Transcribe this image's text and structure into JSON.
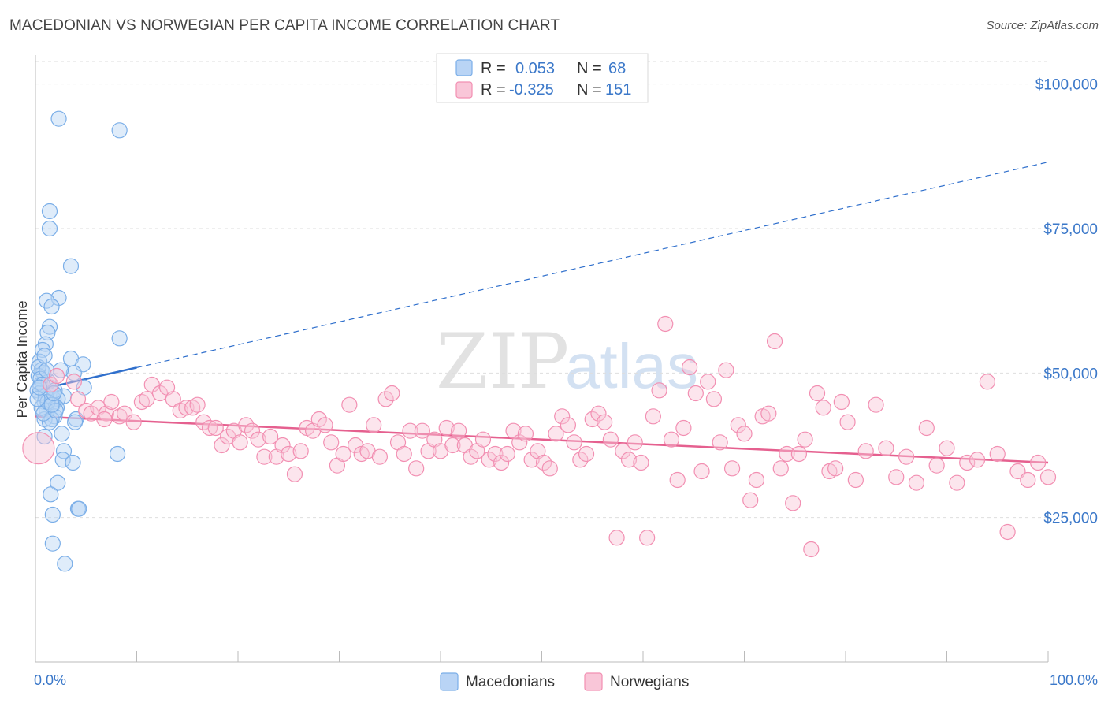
{
  "header": {
    "title": "MACEDONIAN VS NORWEGIAN PER CAPITA INCOME CORRELATION CHART",
    "source": "Source: ZipAtlas.com"
  },
  "watermark": {
    "zip": "ZIP",
    "atlas": "atlas"
  },
  "legend_top": {
    "rows": [
      {
        "r_label": "R =",
        "r_value": "0.053",
        "n_label": "N =",
        "n_value": "68",
        "color": "#7aaee8"
      },
      {
        "r_label": "R =",
        "r_value": "-0.325",
        "n_label": "N =",
        "n_value": "151",
        "color": "#f28fb2"
      }
    ]
  },
  "legend_bottom": {
    "items": [
      {
        "label": "Macedonians",
        "color": "#7aaee8"
      },
      {
        "label": "Norwegians",
        "color": "#f28fb2"
      }
    ]
  },
  "chart_data": {
    "type": "scatter",
    "title": "MACEDONIAN VS NORWEGIAN PER CAPITA INCOME CORRELATION CHART",
    "xlabel": "",
    "ylabel": "Per Capita Income",
    "xlim": [
      0,
      100
    ],
    "ylim": [
      0,
      105000
    ],
    "x_tick_labels": [
      "0.0%",
      "100.0%"
    ],
    "y_ticks": [
      {
        "value": 25000,
        "label": "$25,000"
      },
      {
        "value": 50000,
        "label": "$50,000"
      },
      {
        "value": 75000,
        "label": "$75,000"
      },
      {
        "value": 100000,
        "label": "$100,000"
      }
    ],
    "grid": true,
    "legend_position": "top-center",
    "series": [
      {
        "name": "Macedonians",
        "color": "#7aaee8",
        "line_color": "#2f6fcc",
        "trend": {
          "x0": 0,
          "y0": 47000,
          "x1": 100,
          "y1": 86500,
          "solid_until": 10
        },
        "points": [
          [
            2.3,
            94000
          ],
          [
            8.3,
            92000
          ],
          [
            1.4,
            78000
          ],
          [
            1.4,
            75000
          ],
          [
            3.5,
            68500
          ],
          [
            2.3,
            63000
          ],
          [
            1.1,
            62500
          ],
          [
            1.6,
            61500
          ],
          [
            1.4,
            58000
          ],
          [
            1.2,
            57000
          ],
          [
            8.3,
            56000
          ],
          [
            1.0,
            55000
          ],
          [
            0.7,
            54000
          ],
          [
            3.5,
            52500
          ],
          [
            0.4,
            52000
          ],
          [
            4.7,
            51500
          ],
          [
            0.6,
            50500
          ],
          [
            0.8,
            50000
          ],
          [
            3.8,
            50000
          ],
          [
            0.3,
            49500
          ],
          [
            0.5,
            48000
          ],
          [
            1.5,
            47500
          ],
          [
            4.8,
            47500
          ],
          [
            0.2,
            47000
          ],
          [
            2.8,
            46000
          ],
          [
            1.8,
            45500
          ],
          [
            2.2,
            45500
          ],
          [
            0.9,
            45000
          ],
          [
            1.7,
            44500
          ],
          [
            2.1,
            44000
          ],
          [
            1.1,
            43500
          ],
          [
            1.9,
            42500
          ],
          [
            0.9,
            42000
          ],
          [
            1.6,
            42000
          ],
          [
            4.0,
            42000
          ],
          [
            1.4,
            41500
          ],
          [
            3.9,
            41500
          ],
          [
            2.6,
            39500
          ],
          [
            0.9,
            39000
          ],
          [
            2.8,
            36500
          ],
          [
            8.1,
            36000
          ],
          [
            2.7,
            35000
          ],
          [
            3.7,
            34500
          ],
          [
            2.2,
            31000
          ],
          [
            1.5,
            29000
          ],
          [
            4.2,
            26500
          ],
          [
            4.3,
            26500
          ],
          [
            1.7,
            25500
          ],
          [
            1.7,
            20500
          ],
          [
            2.9,
            17000
          ],
          [
            0.4,
            46500
          ],
          [
            1.3,
            48500
          ],
          [
            0.6,
            44000
          ],
          [
            2.5,
            50500
          ],
          [
            1.0,
            46000
          ],
          [
            0.3,
            51000
          ],
          [
            0.8,
            43000
          ],
          [
            1.9,
            47000
          ],
          [
            0.5,
            49000
          ],
          [
            1.2,
            45000
          ],
          [
            2.0,
            43500
          ],
          [
            0.7,
            48000
          ],
          [
            1.6,
            44500
          ],
          [
            0.2,
            45500
          ],
          [
            1.1,
            50500
          ],
          [
            0.4,
            47500
          ],
          [
            1.8,
            46500
          ],
          [
            0.9,
            53000
          ]
        ]
      },
      {
        "name": "Norwegians",
        "color": "#f28fb2",
        "line_color": "#e5608f",
        "trend": {
          "x0": 0,
          "y0": 42500,
          "x1": 100,
          "y1": 34500
        },
        "points": [
          [
            0.3,
            37000
          ],
          [
            1.5,
            48000
          ],
          [
            2.1,
            49500
          ],
          [
            3.8,
            48500
          ],
          [
            4.2,
            45500
          ],
          [
            5.0,
            43500
          ],
          [
            5.5,
            43000
          ],
          [
            6.2,
            44000
          ],
          [
            7.0,
            43000
          ],
          [
            7.5,
            45000
          ],
          [
            8.3,
            42500
          ],
          [
            8.8,
            43000
          ],
          [
            9.7,
            41500
          ],
          [
            10.5,
            45000
          ],
          [
            11.0,
            45500
          ],
          [
            11.5,
            48000
          ],
          [
            12.3,
            46500
          ],
          [
            13.0,
            47500
          ],
          [
            13.6,
            45500
          ],
          [
            14.3,
            43500
          ],
          [
            14.9,
            44000
          ],
          [
            15.5,
            44000
          ],
          [
            16.0,
            44500
          ],
          [
            16.6,
            41500
          ],
          [
            17.2,
            40500
          ],
          [
            17.8,
            40500
          ],
          [
            18.4,
            37500
          ],
          [
            19.0,
            39000
          ],
          [
            19.6,
            40000
          ],
          [
            20.2,
            38000
          ],
          [
            20.8,
            41000
          ],
          [
            21.4,
            40000
          ],
          [
            22.0,
            38500
          ],
          [
            22.6,
            35500
          ],
          [
            23.2,
            39000
          ],
          [
            23.8,
            35500
          ],
          [
            24.4,
            37500
          ],
          [
            25.0,
            36000
          ],
          [
            25.6,
            32500
          ],
          [
            26.2,
            36500
          ],
          [
            26.8,
            40500
          ],
          [
            27.4,
            40000
          ],
          [
            28.0,
            42000
          ],
          [
            28.6,
            41000
          ],
          [
            29.2,
            38000
          ],
          [
            29.8,
            34000
          ],
          [
            30.4,
            36000
          ],
          [
            31.0,
            44500
          ],
          [
            31.6,
            37500
          ],
          [
            32.2,
            36000
          ],
          [
            32.8,
            36500
          ],
          [
            33.4,
            41000
          ],
          [
            34.0,
            35500
          ],
          [
            34.6,
            45500
          ],
          [
            35.2,
            46500
          ],
          [
            35.8,
            38000
          ],
          [
            36.4,
            36000
          ],
          [
            37.0,
            40000
          ],
          [
            37.6,
            33500
          ],
          [
            38.2,
            40000
          ],
          [
            38.8,
            36500
          ],
          [
            39.4,
            38500
          ],
          [
            40.0,
            36500
          ],
          [
            40.6,
            40500
          ],
          [
            41.2,
            37500
          ],
          [
            41.8,
            40000
          ],
          [
            42.4,
            37500
          ],
          [
            43.0,
            35500
          ],
          [
            43.6,
            36500
          ],
          [
            44.2,
            38500
          ],
          [
            44.8,
            35000
          ],
          [
            45.4,
            36000
          ],
          [
            46.0,
            34500
          ],
          [
            46.6,
            36000
          ],
          [
            47.2,
            40000
          ],
          [
            47.8,
            38000
          ],
          [
            48.4,
            39500
          ],
          [
            49.0,
            35000
          ],
          [
            49.6,
            36500
          ],
          [
            50.2,
            34500
          ],
          [
            50.8,
            33500
          ],
          [
            51.4,
            39500
          ],
          [
            52.0,
            42500
          ],
          [
            52.6,
            41000
          ],
          [
            53.2,
            38000
          ],
          [
            53.8,
            35000
          ],
          [
            54.4,
            36000
          ],
          [
            55.0,
            42000
          ],
          [
            55.6,
            43000
          ],
          [
            56.2,
            41500
          ],
          [
            56.8,
            38500
          ],
          [
            57.4,
            21500
          ],
          [
            58.0,
            36500
          ],
          [
            58.6,
            35000
          ],
          [
            59.2,
            38000
          ],
          [
            59.8,
            34500
          ],
          [
            60.4,
            21500
          ],
          [
            61.0,
            42500
          ],
          [
            61.6,
            47000
          ],
          [
            62.2,
            58500
          ],
          [
            62.8,
            38500
          ],
          [
            63.4,
            31500
          ],
          [
            64.0,
            40500
          ],
          [
            64.6,
            51000
          ],
          [
            65.2,
            46500
          ],
          [
            65.8,
            33000
          ],
          [
            66.4,
            48500
          ],
          [
            67.0,
            45500
          ],
          [
            67.6,
            38000
          ],
          [
            68.2,
            50500
          ],
          [
            68.8,
            33500
          ],
          [
            69.4,
            41000
          ],
          [
            70.0,
            39500
          ],
          [
            70.6,
            28000
          ],
          [
            71.2,
            31500
          ],
          [
            71.8,
            42500
          ],
          [
            72.4,
            43000
          ],
          [
            73.0,
            55500
          ],
          [
            73.6,
            33500
          ],
          [
            74.2,
            36000
          ],
          [
            74.8,
            27500
          ],
          [
            75.4,
            36000
          ],
          [
            76.0,
            38500
          ],
          [
            76.6,
            19500
          ],
          [
            77.2,
            46500
          ],
          [
            77.8,
            44000
          ],
          [
            78.4,
            33000
          ],
          [
            79.0,
            33500
          ],
          [
            79.6,
            45000
          ],
          [
            80.2,
            41500
          ],
          [
            81.0,
            31500
          ],
          [
            82.0,
            36500
          ],
          [
            83.0,
            44500
          ],
          [
            84.0,
            37000
          ],
          [
            85.0,
            32000
          ],
          [
            86.0,
            35500
          ],
          [
            87.0,
            31000
          ],
          [
            88.0,
            40500
          ],
          [
            89.0,
            34000
          ],
          [
            90.0,
            37000
          ],
          [
            91.0,
            31000
          ],
          [
            92.0,
            34500
          ],
          [
            93.0,
            35000
          ],
          [
            94.0,
            48500
          ],
          [
            95.0,
            36000
          ],
          [
            96.0,
            22500
          ],
          [
            97.0,
            33000
          ],
          [
            98.0,
            31500
          ],
          [
            99.0,
            34500
          ],
          [
            100.0,
            32000
          ],
          [
            6.8,
            42000
          ]
        ]
      }
    ]
  }
}
